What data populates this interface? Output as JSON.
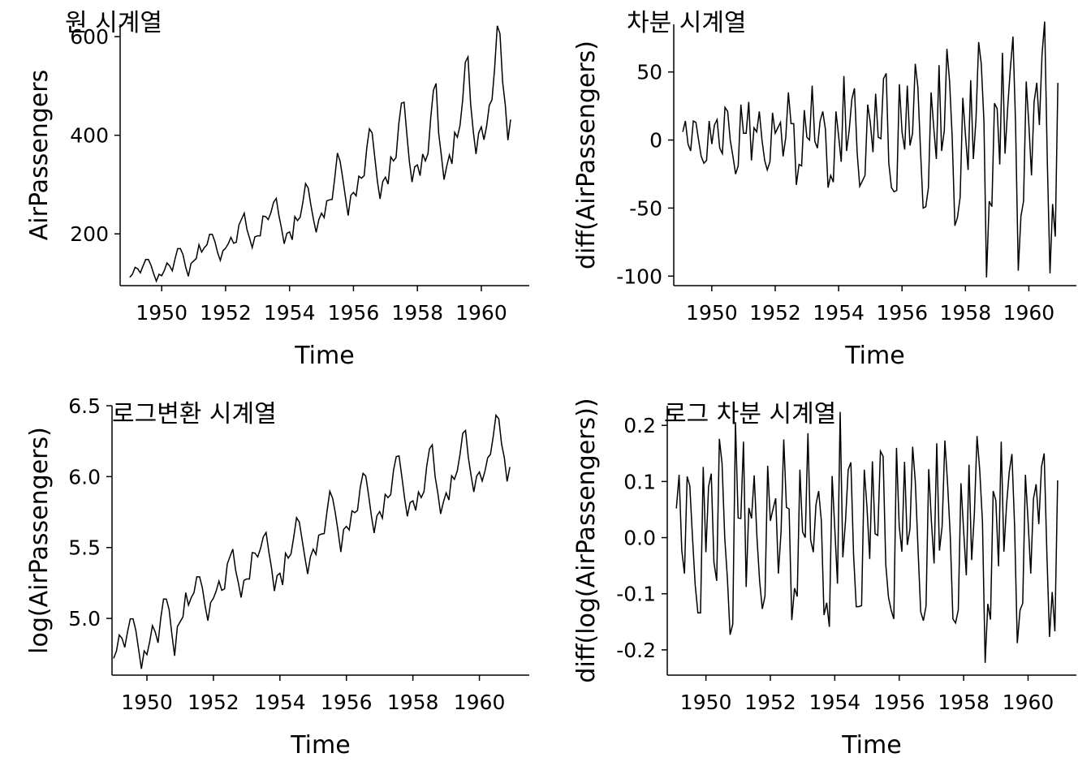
{
  "chart_data": [
    {
      "type": "line",
      "title": "원 시계열",
      "xlabel": "Time",
      "ylabel": "AirPassengers",
      "xlim": [
        1948.7,
        1961.5
      ],
      "ylim": [
        95,
        625
      ],
      "xticks": [
        1950,
        1952,
        1954,
        1956,
        1958,
        1960
      ],
      "yticks": [
        200,
        400,
        600
      ],
      "x_start": 1949.0,
      "x_step": 0.0833333,
      "values": [
        112,
        118,
        132,
        129,
        121,
        135,
        148,
        148,
        136,
        119,
        104,
        118,
        115,
        126,
        141,
        135,
        125,
        149,
        170,
        170,
        158,
        133,
        114,
        140,
        145,
        150,
        178,
        163,
        172,
        178,
        199,
        199,
        184,
        162,
        146,
        166,
        171,
        180,
        193,
        181,
        183,
        218,
        230,
        242,
        209,
        191,
        172,
        194,
        196,
        196,
        236,
        235,
        229,
        243,
        264,
        272,
        237,
        211,
        180,
        201,
        204,
        188,
        235,
        227,
        234,
        264,
        302,
        293,
        259,
        229,
        203,
        229,
        242,
        233,
        267,
        269,
        270,
        315,
        364,
        347,
        312,
        274,
        237,
        278,
        284,
        277,
        317,
        313,
        318,
        374,
        413,
        405,
        355,
        306,
        271,
        306,
        315,
        301,
        356,
        348,
        355,
        422,
        465,
        467,
        404,
        347,
        305,
        336,
        340,
        318,
        362,
        348,
        363,
        435,
        491,
        505,
        404,
        359,
        310,
        337,
        360,
        342,
        406,
        396,
        420,
        472,
        548,
        559,
        463,
        407,
        362,
        405,
        417,
        391,
        419,
        461,
        472,
        535,
        622,
        606,
        508,
        461,
        390,
        432
      ]
    },
    {
      "type": "line",
      "title": "차분 시계열",
      "xlabel": "Time",
      "ylabel": "diff(AirPassengers)",
      "xlim": [
        1948.8,
        1961.5
      ],
      "ylim": [
        -107,
        85
      ],
      "xticks": [
        1950,
        1952,
        1954,
        1956,
        1958,
        1960
      ],
      "yticks": [
        50,
        0,
        -50,
        -100
      ],
      "x_start": 1949.0833333,
      "x_step": 0.0833333,
      "values": [
        6,
        14,
        -3,
        -8,
        14,
        13,
        0,
        -12,
        -17,
        -15,
        14,
        -3,
        11,
        15,
        -6,
        -10,
        24,
        21,
        0,
        -12,
        -25,
        -19,
        26,
        5,
        5,
        28,
        -15,
        9,
        6,
        21,
        0,
        -15,
        -22,
        -16,
        20,
        5,
        9,
        13,
        -12,
        2,
        35,
        12,
        12,
        -33,
        -18,
        -19,
        22,
        2,
        0,
        40,
        -1,
        -6,
        14,
        21,
        8,
        -35,
        -26,
        -31,
        21,
        3,
        -16,
        47,
        -8,
        7,
        30,
        38,
        -9,
        -34,
        -30,
        -26,
        26,
        13,
        -9,
        34,
        2,
        1,
        45,
        49,
        -17,
        -35,
        -38,
        -37,
        41,
        6,
        -7,
        40,
        -4,
        5,
        56,
        39,
        -8,
        -50,
        -49,
        -35,
        35,
        9,
        -14,
        55,
        -8,
        7,
        67,
        43,
        2,
        -63,
        -57,
        -42,
        31,
        4,
        -22,
        44,
        -14,
        15,
        72,
        56,
        14,
        -101,
        -45,
        -49,
        27,
        23,
        -18,
        64,
        -10,
        24,
        52,
        76,
        11,
        -96,
        -56,
        -45,
        43,
        12,
        -26,
        28,
        42,
        11,
        63,
        87,
        -16,
        -98,
        -47,
        -71,
        42
      ]
    },
    {
      "type": "line",
      "title": "로그변환 시계열",
      "xlabel": "Time",
      "ylabel": "log(AirPassengers)",
      "xlim": [
        1948.95,
        1961.5
      ],
      "ylim": [
        4.6,
        6.5
      ],
      "xticks": [
        1950,
        1952,
        1954,
        1956,
        1958,
        1960
      ],
      "yticks": [
        5.0,
        5.5,
        6.0,
        6.5
      ],
      "ytick_labels": [
        "5.0",
        "5.5",
        "6.0",
        "6.5"
      ],
      "x_start": 1949.0,
      "x_step": 0.0833333,
      "values": [
        4.718,
        4.771,
        4.883,
        4.86,
        4.796,
        4.905,
        4.997,
        4.997,
        4.913,
        4.779,
        4.644,
        4.771,
        4.745,
        4.836,
        4.949,
        4.905,
        4.828,
        5.004,
        5.136,
        5.136,
        5.063,
        4.89,
        4.736,
        4.942,
        4.977,
        5.011,
        5.182,
        5.094,
        5.147,
        5.182,
        5.293,
        5.293,
        5.215,
        5.088,
        4.984,
        5.112,
        5.142,
        5.193,
        5.263,
        5.198,
        5.209,
        5.384,
        5.438,
        5.489,
        5.342,
        5.252,
        5.147,
        5.268,
        5.278,
        5.278,
        5.464,
        5.46,
        5.434,
        5.493,
        5.576,
        5.606,
        5.468,
        5.352,
        5.193,
        5.303,
        5.318,
        5.236,
        5.46,
        5.425,
        5.455,
        5.576,
        5.71,
        5.68,
        5.557,
        5.434,
        5.313,
        5.434,
        5.489,
        5.451,
        5.587,
        5.595,
        5.598,
        5.753,
        5.897,
        5.849,
        5.743,
        5.613,
        5.468,
        5.628,
        5.649,
        5.624,
        5.759,
        5.746,
        5.762,
        5.924,
        6.023,
        6.004,
        5.872,
        5.724,
        5.602,
        5.724,
        5.753,
        5.707,
        5.875,
        5.852,
        5.872,
        6.045,
        6.142,
        6.146,
        6.001,
        5.849,
        5.72,
        5.817,
        5.829,
        5.762,
        5.892,
        5.852,
        5.894,
        6.075,
        6.196,
        6.225,
        6.001,
        5.883,
        5.737,
        5.82,
        5.886,
        5.835,
        6.006,
        5.981,
        6.04,
        6.157,
        6.306,
        6.326,
        6.138,
        6.009,
        5.892,
        6.004,
        6.033,
        5.969,
        6.038,
        6.133,
        6.157,
        6.283,
        6.433,
        6.407,
        6.23,
        6.133,
        5.966,
        6.068
      ]
    },
    {
      "type": "line",
      "title": "로그 차분 시계열",
      "xlabel": "Time",
      "ylabel": "diff(log(AirPassengers))",
      "xlim": [
        1948.8,
        1961.5
      ],
      "ylim": [
        -0.245,
        0.235
      ],
      "xticks": [
        1950,
        1952,
        1954,
        1956,
        1958,
        1960
      ],
      "yticks": [
        0.2,
        0.1,
        0.0,
        -0.1,
        -0.2
      ],
      "ytick_labels": [
        "0.2",
        "0.1",
        "0.0",
        "-0.1",
        "-0.2"
      ],
      "x_start": 1949.0833333,
      "x_step": 0.0833333,
      "values": [
        0.052,
        0.112,
        -0.023,
        -0.064,
        0.109,
        0.092,
        0.0,
        -0.084,
        -0.134,
        -0.134,
        0.126,
        -0.026,
        0.091,
        0.114,
        -0.044,
        -0.077,
        0.176,
        0.132,
        0.0,
        -0.073,
        -0.173,
        -0.154,
        0.206,
        0.035,
        0.034,
        0.171,
        -0.088,
        0.053,
        0.034,
        0.111,
        0.0,
        -0.078,
        -0.127,
        -0.104,
        0.128,
        0.03,
        0.051,
        0.07,
        -0.064,
        0.011,
        0.175,
        0.054,
        0.051,
        -0.147,
        -0.09,
        -0.105,
        0.121,
        0.01,
        0.0,
        0.186,
        -0.004,
        -0.026,
        0.059,
        0.083,
        0.03,
        -0.138,
        -0.116,
        -0.159,
        0.11,
        0.015,
        -0.082,
        0.224,
        -0.035,
        0.03,
        0.121,
        0.134,
        -0.03,
        -0.123,
        -0.123,
        -0.121,
        0.121,
        0.055,
        -0.038,
        0.136,
        0.007,
        0.004,
        0.154,
        0.145,
        -0.048,
        -0.106,
        -0.129,
        -0.145,
        0.16,
        0.021,
        -0.025,
        0.135,
        -0.013,
        0.016,
        0.162,
        0.099,
        -0.02,
        -0.132,
        -0.148,
        -0.122,
        0.122,
        0.029,
        -0.046,
        0.168,
        -0.023,
        0.02,
        0.173,
        0.097,
        0.004,
        -0.145,
        -0.152,
        -0.129,
        0.097,
        0.012,
        -0.067,
        0.13,
        -0.04,
        0.042,
        0.181,
        0.121,
        0.028,
        -0.223,
        -0.118,
        -0.146,
        0.083,
        0.066,
        -0.051,
        0.171,
        -0.025,
        0.059,
        0.117,
        0.149,
        0.02,
        -0.188,
        -0.129,
        -0.117,
        0.112,
        0.029,
        -0.064,
        0.069,
        0.095,
        0.024,
        0.126,
        0.15,
        -0.026,
        -0.177,
        -0.097,
        -0.167,
        0.102
      ]
    }
  ]
}
